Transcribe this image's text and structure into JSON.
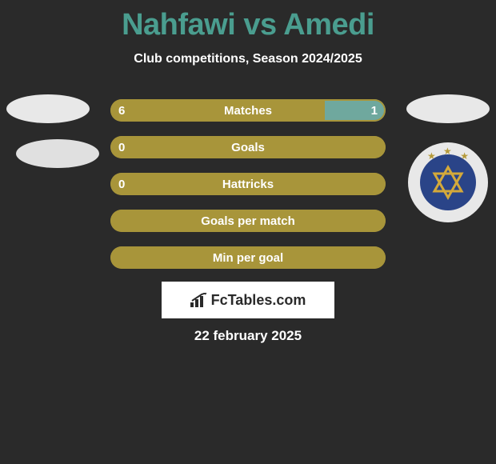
{
  "title": "Nahfawi vs Amedi",
  "subtitle": "Club competitions, Season 2024/2025",
  "footer_date": "22 february 2025",
  "fc_text": "FcTables.com",
  "colors": {
    "title": "#4a9d8f",
    "bar_left": "#a8953a",
    "bar_right": "#6fa89e",
    "background": "#2a2a2a"
  },
  "bars": [
    {
      "label": "Matches",
      "left_val": "6",
      "right_val": "1",
      "left_pct": 78,
      "right_pct": 22,
      "show_left_val": true,
      "show_right_val": true
    },
    {
      "label": "Goals",
      "left_val": "0",
      "right_val": "",
      "left_pct": 100,
      "right_pct": 0,
      "show_left_val": true,
      "show_right_val": false
    },
    {
      "label": "Hattricks",
      "left_val": "0",
      "right_val": "",
      "left_pct": 100,
      "right_pct": 0,
      "show_left_val": true,
      "show_right_val": false
    },
    {
      "label": "Goals per match",
      "left_val": "",
      "right_val": "",
      "left_pct": 100,
      "right_pct": 0,
      "show_left_val": false,
      "show_right_val": false
    },
    {
      "label": "Min per goal",
      "left_val": "",
      "right_val": "",
      "left_pct": 100,
      "right_pct": 0,
      "show_left_val": false,
      "show_right_val": false
    }
  ]
}
